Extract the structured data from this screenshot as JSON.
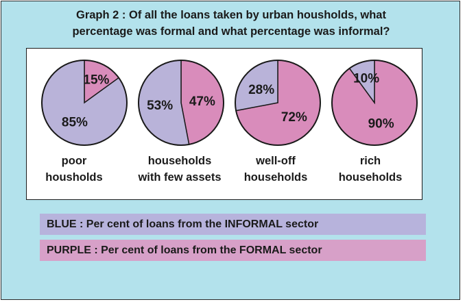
{
  "title": {
    "line1": "Graph 2 : Of all the loans taken by urban housholds, what",
    "line2": "percentage was formal and what percentage was informal?"
  },
  "colors": {
    "background": "#b3e2ec",
    "informal": "#b9b3d9",
    "formal": "#d98cbb",
    "legend_informal_bg": "#b7b3dc",
    "legend_formal_bg": "#d7a0c8"
  },
  "legend": {
    "informal": "BLUE : Per cent of loans from the INFORMAL sector",
    "formal": "PURPLE : Per cent of loans from the FORMAL sector"
  },
  "chart_data": {
    "type": "pie",
    "series_keys": [
      "formal",
      "informal"
    ],
    "pies": [
      {
        "caption1": "poor",
        "caption2": "housholds",
        "formal": 15,
        "informal": 85,
        "formal_label": "15%",
        "informal_label": "85%"
      },
      {
        "caption1": "households",
        "caption2": "with few assets",
        "formal": 47,
        "informal": 53,
        "formal_label": "47%",
        "informal_label": "53%"
      },
      {
        "caption1": "well-off",
        "caption2": "households",
        "formal": 72,
        "informal": 28,
        "formal_label": "72%",
        "informal_label": "28%"
      },
      {
        "caption1": "rich",
        "caption2": "households",
        "formal": 90,
        "informal": 10,
        "formal_label": "90%",
        "informal_label": "10%"
      }
    ]
  }
}
